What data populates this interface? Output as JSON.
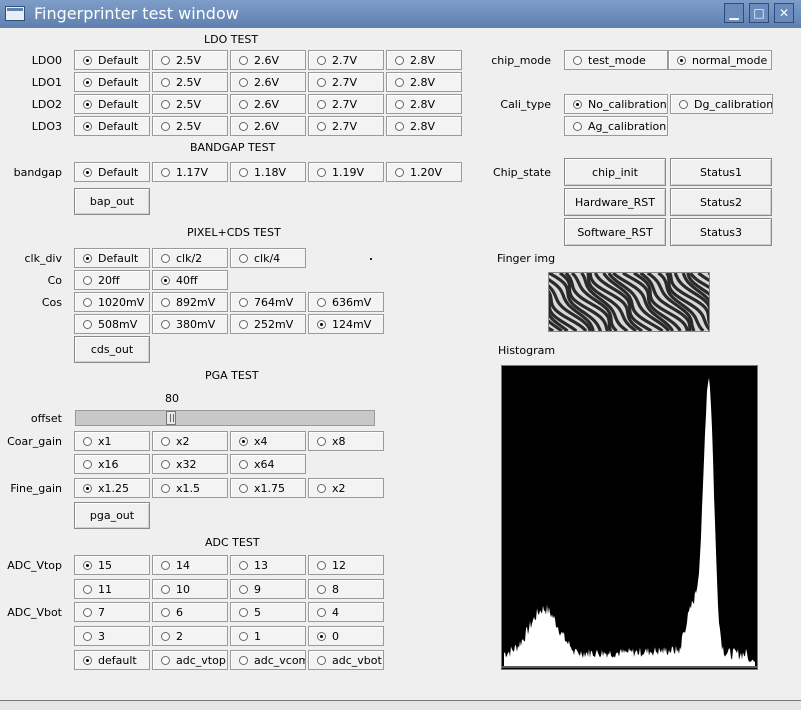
{
  "window": {
    "title": "Fingerprinter test window",
    "controls": [
      "▁",
      "□",
      "✕"
    ]
  },
  "ldo": {
    "title": "LDO TEST",
    "options": [
      "Default",
      "2.5V",
      "2.6V",
      "2.7V",
      "2.8V"
    ],
    "rows": [
      {
        "label": "LDO0",
        "selected": 0
      },
      {
        "label": "LDO1",
        "selected": 0
      },
      {
        "label": "LDO2",
        "selected": 0
      },
      {
        "label": "LDO3",
        "selected": 0
      }
    ]
  },
  "bandgap": {
    "title": "BANDGAP TEST",
    "label": "bandgap",
    "options": [
      "Default",
      "1.17V",
      "1.18V",
      "1.19V",
      "1.20V"
    ],
    "selected": 0,
    "out_button": "bap_out"
  },
  "pixel": {
    "title": "PIXEL+CDS TEST",
    "clk_div": {
      "label": "clk_div",
      "options": [
        "Default",
        "clk/2",
        "clk/4"
      ],
      "selected": 0
    },
    "co": {
      "label": "Co",
      "options": [
        "20ff",
        "40ff"
      ],
      "selected": 1
    },
    "cos": {
      "label": "Cos",
      "options": [
        "1020mV",
        "892mV",
        "764mV",
        "636mV",
        "508mV",
        "380mV",
        "252mV",
        "124mV"
      ],
      "selected": 7
    },
    "out_button": "cds_out"
  },
  "pga": {
    "title": "PGA TEST",
    "offset": {
      "label": "offset",
      "value": "80"
    },
    "coar_gain": {
      "label": "Coar_gain",
      "options": [
        "x1",
        "x2",
        "x4",
        "x8",
        "x16",
        "x32",
        "x64"
      ],
      "selected": 2
    },
    "fine_gain": {
      "label": "Fine_gain",
      "options": [
        "x1.25",
        "x1.5",
        "x1.75",
        "x2"
      ],
      "selected": 0
    },
    "out_button": "pga_out"
  },
  "adc": {
    "title": "ADC TEST",
    "vtop": {
      "label": "ADC_Vtop",
      "options": [
        "15",
        "14",
        "13",
        "12",
        "11",
        "10",
        "9",
        "8"
      ],
      "selected": 0
    },
    "vbot": {
      "label": "ADC_Vbot",
      "options": [
        "7",
        "6",
        "5",
        "4",
        "3",
        "2",
        "1",
        "0"
      ],
      "selected": 7
    },
    "mode": {
      "options": [
        "default",
        "adc_vtop",
        "adc_vcom",
        "adc_vbot"
      ],
      "selected": 0
    }
  },
  "chip_mode": {
    "label": "chip_mode",
    "options": [
      "test_mode",
      "normal_mode"
    ],
    "selected": 1
  },
  "cali_type": {
    "label": "Cali_type",
    "options": [
      "No_calibration",
      "Dg_calibration",
      "Ag_calibration"
    ],
    "selected": 0
  },
  "chip_state": {
    "label": "Chip_state",
    "buttons": [
      "chip_init",
      "Status1",
      "Hardware_RST",
      "Status2",
      "Software_RST",
      "Status3"
    ]
  },
  "finger_img": {
    "label": "Finger img"
  },
  "histogram": {
    "label": "Histogram"
  },
  "colors": {
    "title_bar": "#6b8bbd",
    "window_bg": "#efefef",
    "histogram_bg": "#000000",
    "histogram_fill": "#ffffff"
  }
}
